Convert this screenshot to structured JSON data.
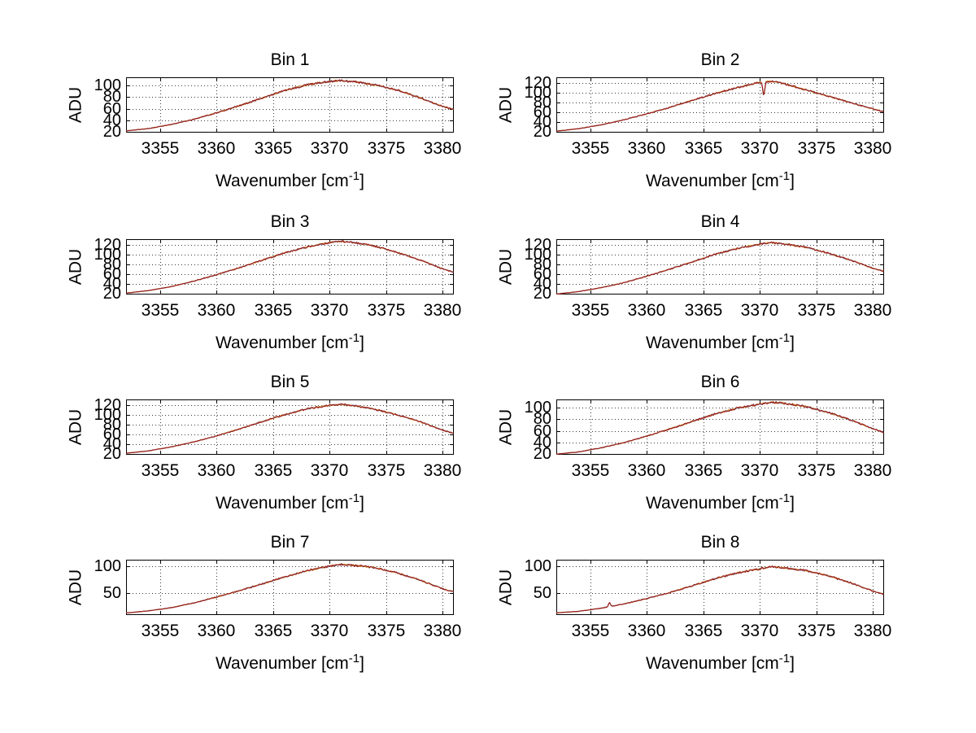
{
  "figure": {
    "background": "#ffffff",
    "axis_color": "#000000",
    "grid_color": "#3a3a3a",
    "grid_style": "dotted",
    "series_colors": {
      "data_blue": "#6688bb",
      "data_orange": "#dd9a33",
      "fit_red": "#97211f"
    },
    "xlabel_prefix": "Wavenumber [cm",
    "xlabel_sup": "-1",
    "xlabel_suffix": "]",
    "ylabel": "ADU"
  },
  "chart_data": [
    {
      "type": "line",
      "title": "Bin 1",
      "xlabel": "Wavenumber [cm^-1]",
      "ylabel": "ADU",
      "xlim": [
        3352,
        3381
      ],
      "ylim": [
        19,
        114
      ],
      "xticks": [
        3355,
        3360,
        3365,
        3370,
        3375,
        3380
      ],
      "yticks": [
        20,
        40,
        60,
        80,
        100
      ],
      "anchors_x": [
        3352,
        3354,
        3356,
        3358,
        3360,
        3362,
        3364,
        3366,
        3368,
        3370,
        3371,
        3372,
        3374,
        3376,
        3378,
        3380,
        3381
      ],
      "anchors_y": [
        22,
        26,
        33,
        42,
        53,
        65,
        78,
        91,
        101,
        107,
        108,
        107,
        101,
        92,
        79,
        64,
        59
      ],
      "spikes": []
    },
    {
      "type": "line",
      "title": "Bin 2",
      "xlabel": "Wavenumber [cm^-1]",
      "ylabel": "ADU",
      "xlim": [
        3352,
        3381
      ],
      "ylim": [
        19,
        131
      ],
      "xticks": [
        3355,
        3360,
        3365,
        3370,
        3375,
        3380
      ],
      "yticks": [
        20,
        40,
        60,
        80,
        100,
        120
      ],
      "anchors_x": [
        3352,
        3354,
        3356,
        3358,
        3360,
        3362,
        3364,
        3366,
        3368,
        3370,
        3371,
        3372,
        3374,
        3376,
        3378,
        3380,
        3381
      ],
      "anchors_y": [
        22,
        27,
        35,
        45,
        57,
        70,
        84,
        98,
        110,
        121,
        123,
        119,
        106,
        93,
        80,
        67,
        61
      ],
      "spikes": [
        {
          "x": 3370.35,
          "dy": -27,
          "width": 0.13
        }
      ]
    },
    {
      "type": "line",
      "title": "Bin 3",
      "xlabel": "Wavenumber [cm^-1]",
      "ylabel": "ADU",
      "xlim": [
        3352,
        3381
      ],
      "ylim": [
        19,
        131
      ],
      "xticks": [
        3355,
        3360,
        3365,
        3370,
        3375,
        3380
      ],
      "yticks": [
        20,
        40,
        60,
        80,
        100,
        120
      ],
      "anchors_x": [
        3352,
        3354,
        3356,
        3358,
        3360,
        3362,
        3364,
        3366,
        3368,
        3370,
        3371,
        3372,
        3374,
        3376,
        3378,
        3380,
        3381
      ],
      "anchors_y": [
        22,
        27,
        35,
        46,
        59,
        73,
        88,
        103,
        115,
        124,
        127,
        125,
        117,
        104,
        89,
        71,
        64
      ],
      "spikes": []
    },
    {
      "type": "line",
      "title": "Bin 4",
      "xlabel": "Wavenumber [cm^-1]",
      "ylabel": "ADU",
      "xlim": [
        3352,
        3381
      ],
      "ylim": [
        19,
        131
      ],
      "xticks": [
        3355,
        3360,
        3365,
        3370,
        3375,
        3380
      ],
      "yticks": [
        20,
        40,
        60,
        80,
        100,
        120
      ],
      "anchors_x": [
        3352,
        3354,
        3356,
        3358,
        3360,
        3362,
        3364,
        3366,
        3368,
        3370,
        3371,
        3372,
        3374,
        3376,
        3378,
        3380,
        3381
      ],
      "anchors_y": [
        20,
        25,
        33,
        43,
        56,
        70,
        85,
        100,
        112,
        121,
        124,
        122,
        115,
        103,
        89,
        72,
        66
      ],
      "spikes": []
    },
    {
      "type": "line",
      "title": "Bin 5",
      "xlabel": "Wavenumber [cm^-1]",
      "ylabel": "ADU",
      "xlim": [
        3352,
        3381
      ],
      "ylim": [
        19,
        131
      ],
      "xticks": [
        3355,
        3360,
        3365,
        3370,
        3375,
        3380
      ],
      "yticks": [
        20,
        40,
        60,
        80,
        100,
        120
      ],
      "anchors_x": [
        3352,
        3354,
        3356,
        3358,
        3360,
        3362,
        3364,
        3366,
        3368,
        3370,
        3371,
        3372,
        3374,
        3376,
        3378,
        3380,
        3381
      ],
      "anchors_y": [
        22,
        27,
        35,
        45,
        57,
        71,
        86,
        100,
        112,
        119,
        121,
        119,
        111,
        100,
        86,
        69,
        62
      ],
      "spikes": []
    },
    {
      "type": "line",
      "title": "Bin 6",
      "xlabel": "Wavenumber [cm^-1]",
      "ylabel": "ADU",
      "xlim": [
        3352,
        3381
      ],
      "ylim": [
        19,
        114
      ],
      "xticks": [
        3355,
        3360,
        3365,
        3370,
        3375,
        3380
      ],
      "yticks": [
        20,
        40,
        60,
        80,
        100
      ],
      "anchors_x": [
        3352,
        3354,
        3356,
        3358,
        3360,
        3362,
        3364,
        3366,
        3368,
        3370,
        3371,
        3372,
        3374,
        3376,
        3378,
        3380,
        3381
      ],
      "anchors_y": [
        20,
        24,
        31,
        40,
        51,
        63,
        76,
        89,
        99,
        106,
        109,
        108,
        102,
        92,
        79,
        64,
        57
      ],
      "spikes": []
    },
    {
      "type": "line",
      "title": "Bin 7",
      "xlabel": "Wavenumber [cm^-1]",
      "ylabel": "ADU",
      "xlim": [
        3352,
        3381
      ],
      "ylim": [
        8,
        113
      ],
      "xticks": [
        3355,
        3360,
        3365,
        3370,
        3375,
        3380
      ],
      "yticks": [
        50,
        100
      ],
      "anchors_x": [
        3352,
        3354,
        3356,
        3358,
        3360,
        3362,
        3364,
        3366,
        3368,
        3370,
        3371,
        3372,
        3374,
        3376,
        3378,
        3380,
        3381
      ],
      "anchors_y": [
        12,
        16,
        22,
        31,
        42,
        54,
        67,
        80,
        92,
        101,
        104,
        103,
        98,
        88,
        74,
        58,
        52
      ],
      "spikes": []
    },
    {
      "type": "line",
      "title": "Bin 8",
      "xlabel": "Wavenumber [cm^-1]",
      "ylabel": "ADU",
      "xlim": [
        3352,
        3381
      ],
      "ylim": [
        8,
        112
      ],
      "xticks": [
        3355,
        3360,
        3365,
        3370,
        3375,
        3380
      ],
      "yticks": [
        50,
        100
      ],
      "anchors_x": [
        3352,
        3354,
        3356,
        3358,
        3360,
        3362,
        3364,
        3366,
        3368,
        3370,
        3371,
        3372,
        3374,
        3376,
        3378,
        3380,
        3381
      ],
      "anchors_y": [
        12,
        15,
        21,
        29,
        39,
        50,
        63,
        76,
        87,
        95,
        99,
        97,
        92,
        82,
        69,
        53,
        47
      ],
      "spikes": [
        {
          "x": 3356.7,
          "dy": 8,
          "width": 0.12
        }
      ]
    }
  ]
}
